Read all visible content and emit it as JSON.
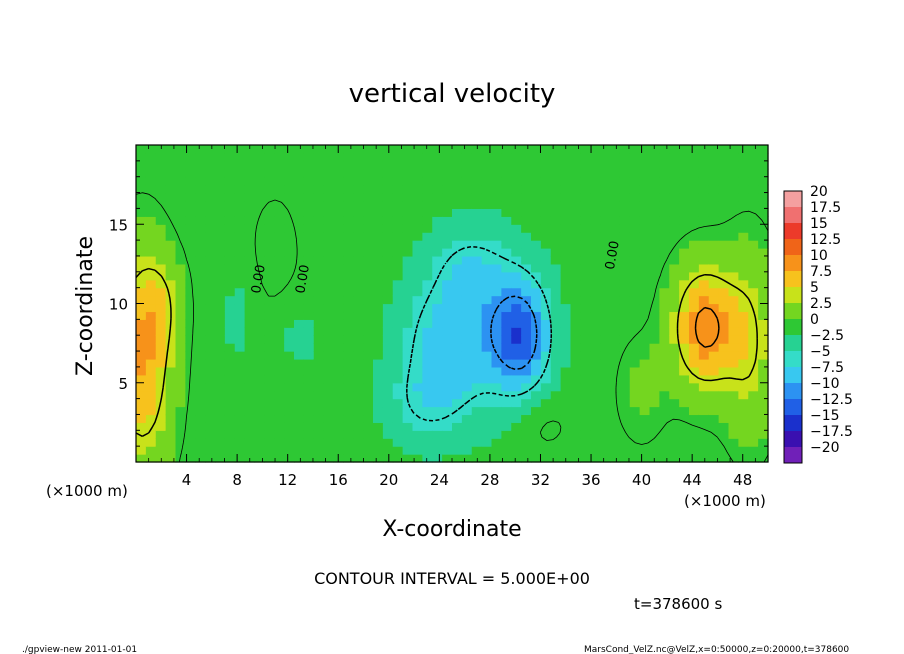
{
  "chart_data": {
    "type": "heatmap",
    "title": "vertical velocity",
    "xlabel": "X-coordinate",
    "ylabel": "Z-coordinate",
    "x_unit": "(×1000 m)",
    "y_unit": "(×1000 m)",
    "xlim": [
      0,
      50
    ],
    "ylim": [
      0,
      20
    ],
    "x_ticks": [
      4,
      8,
      12,
      16,
      20,
      24,
      28,
      32,
      36,
      40,
      44,
      48
    ],
    "y_ticks": [
      5,
      10,
      15
    ],
    "colorbar": {
      "labels": [
        "20",
        "17.5",
        "15",
        "12.5",
        "10",
        "7.5",
        "5",
        "2.5",
        "0",
        "−2.5",
        "−5",
        "−7.5",
        "−10",
        "−12.5",
        "−15",
        "−17.5",
        "−20"
      ],
      "colors": [
        "#f4a0a0",
        "#f07070",
        "#ec3a2a",
        "#f06418",
        "#f7921a",
        "#f7c21d",
        "#c8e21a",
        "#74d620",
        "#2ec834",
        "#26d292",
        "#34dcc8",
        "#38c8f0",
        "#2c92f2",
        "#2060e6",
        "#1a30cc",
        "#3a10b0",
        "#7020b8"
      ]
    },
    "contour_interval": "CONTOUR INTERVAL = 5.000E+00",
    "contour_labels": [
      "0.00",
      "0.00",
      "0.00"
    ],
    "time_label": "t=378600 s",
    "footer_left": "./gpview-new  2011-01-01",
    "footer_right": "MarsCond_VelZ.nc@VelZ,x=0:50000,z=0:20000,t=378600",
    "features": [
      {
        "x": 45,
        "z": 8.5,
        "sx": 1.7,
        "sz": 2.6,
        "amp": 11
      },
      {
        "x": 0.5,
        "z": 6.5,
        "sx": 1.6,
        "sz": 4.5,
        "amp": 9
      },
      {
        "x": 2,
        "z": 10,
        "sx": 1.2,
        "sz": 2.0,
        "amp": 3
      },
      {
        "x": 30.5,
        "z": 8,
        "sx": 1.7,
        "sz": 2.6,
        "amp": -11
      },
      {
        "x": 27,
        "z": 9,
        "sx": 3.0,
        "sz": 4.0,
        "amp": -5
      },
      {
        "x": 24,
        "z": 7,
        "sx": 2.6,
        "sz": 3.2,
        "amp": -5
      },
      {
        "x": 22.5,
        "z": 3.5,
        "sx": 2.2,
        "sz": 1.8,
        "amp": -3
      },
      {
        "x": 26.5,
        "z": 12.5,
        "sx": 2.0,
        "sz": 1.6,
        "amp": -2.5
      },
      {
        "x": 8,
        "z": 9,
        "sx": 1.0,
        "sz": 2.2,
        "amp": -2
      },
      {
        "x": 13,
        "z": 8,
        "sx": 1.4,
        "sz": 1.6,
        "amp": -2
      },
      {
        "x": 11,
        "z": 13,
        "sx": 1.5,
        "sz": 3.0,
        "amp": 1.2
      },
      {
        "x": 48.5,
        "z": 7.5,
        "sx": 1.4,
        "sz": 4.0,
        "amp": 5
      },
      {
        "x": 40,
        "z": 4.5,
        "sx": 1.5,
        "sz": 2.5,
        "amp": 1.5
      },
      {
        "x": 32,
        "z": 2.5,
        "sx": 1.6,
        "sz": 1.3,
        "amp": 1.5
      }
    ]
  }
}
